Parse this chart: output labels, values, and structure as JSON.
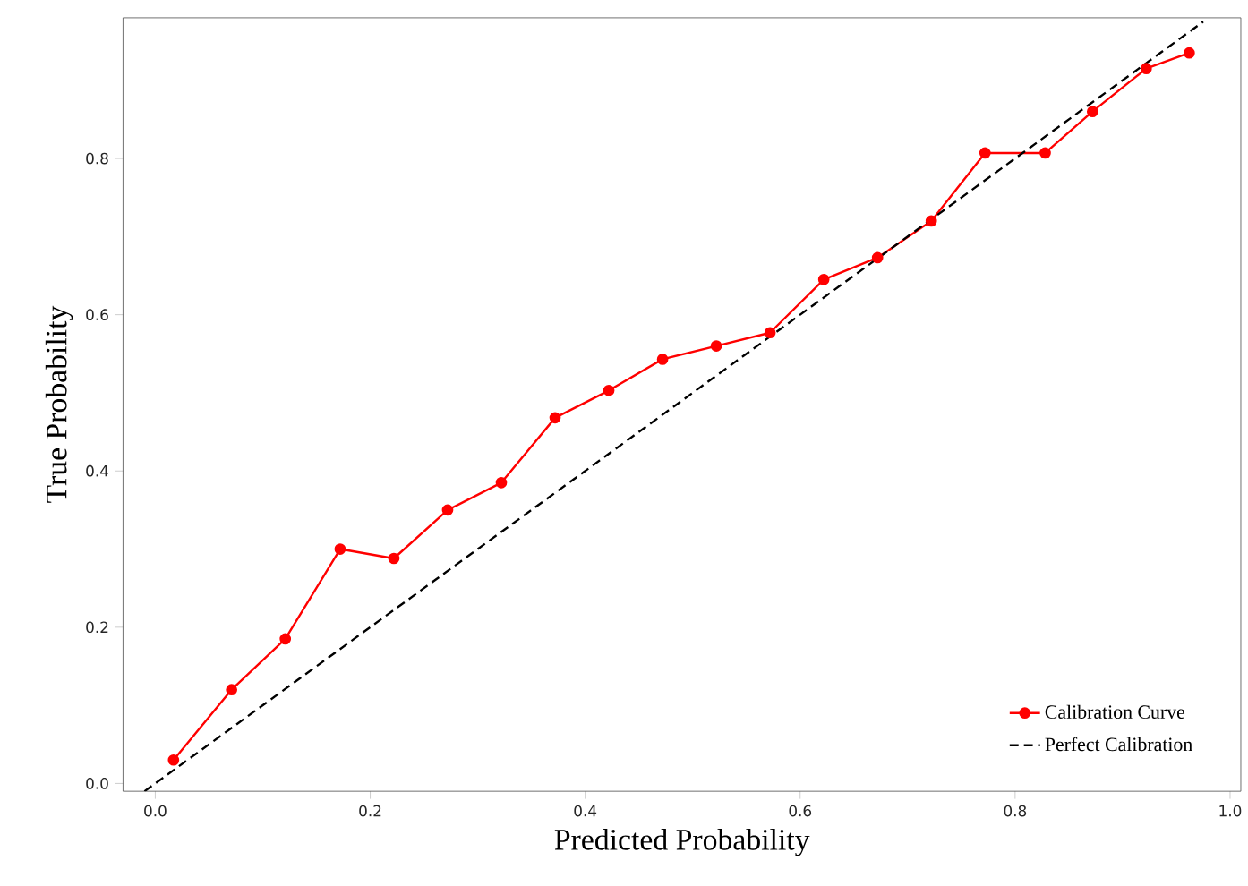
{
  "chart_data": {
    "type": "line",
    "xlabel": "Predicted Probability",
    "ylabel": "True Probability",
    "xlim": [
      -0.03,
      1.01
    ],
    "ylim": [
      -0.01,
      0.98
    ],
    "xticks": [
      {
        "value": 0,
        "label": "0.0"
      },
      0.2,
      0.4,
      0.6,
      0.8,
      {
        "value": 1,
        "label": "1.0"
      }
    ],
    "yticks": [
      {
        "value": 0,
        "label": "0.0"
      },
      0.2,
      0.4,
      0.6,
      0.8
    ],
    "grid": false,
    "legend": "bottom right",
    "series": [
      {
        "name": "Calibration Curve",
        "color": "#ff0000",
        "marker": "circle",
        "line_style": "solid",
        "x": [
          0.017,
          0.071,
          0.121,
          0.172,
          0.222,
          0.272,
          0.322,
          0.372,
          0.422,
          0.472,
          0.522,
          0.572,
          0.622,
          0.672,
          0.722,
          0.772,
          0.828,
          0.872,
          0.922,
          0.962
        ],
        "values": [
          0.03,
          0.12,
          0.185,
          0.3,
          0.288,
          0.35,
          0.385,
          0.468,
          0.503,
          0.543,
          0.56,
          0.577,
          0.645,
          0.673,
          0.72,
          0.807,
          0.807,
          0.86,
          0.915,
          0.935
        ]
      },
      {
        "name": "Perfect Calibration",
        "color": "#000000",
        "marker": "none",
        "line_style": "dashed",
        "x": [
          -0.01,
          0.975
        ],
        "values": [
          -0.01,
          0.975
        ]
      }
    ]
  }
}
